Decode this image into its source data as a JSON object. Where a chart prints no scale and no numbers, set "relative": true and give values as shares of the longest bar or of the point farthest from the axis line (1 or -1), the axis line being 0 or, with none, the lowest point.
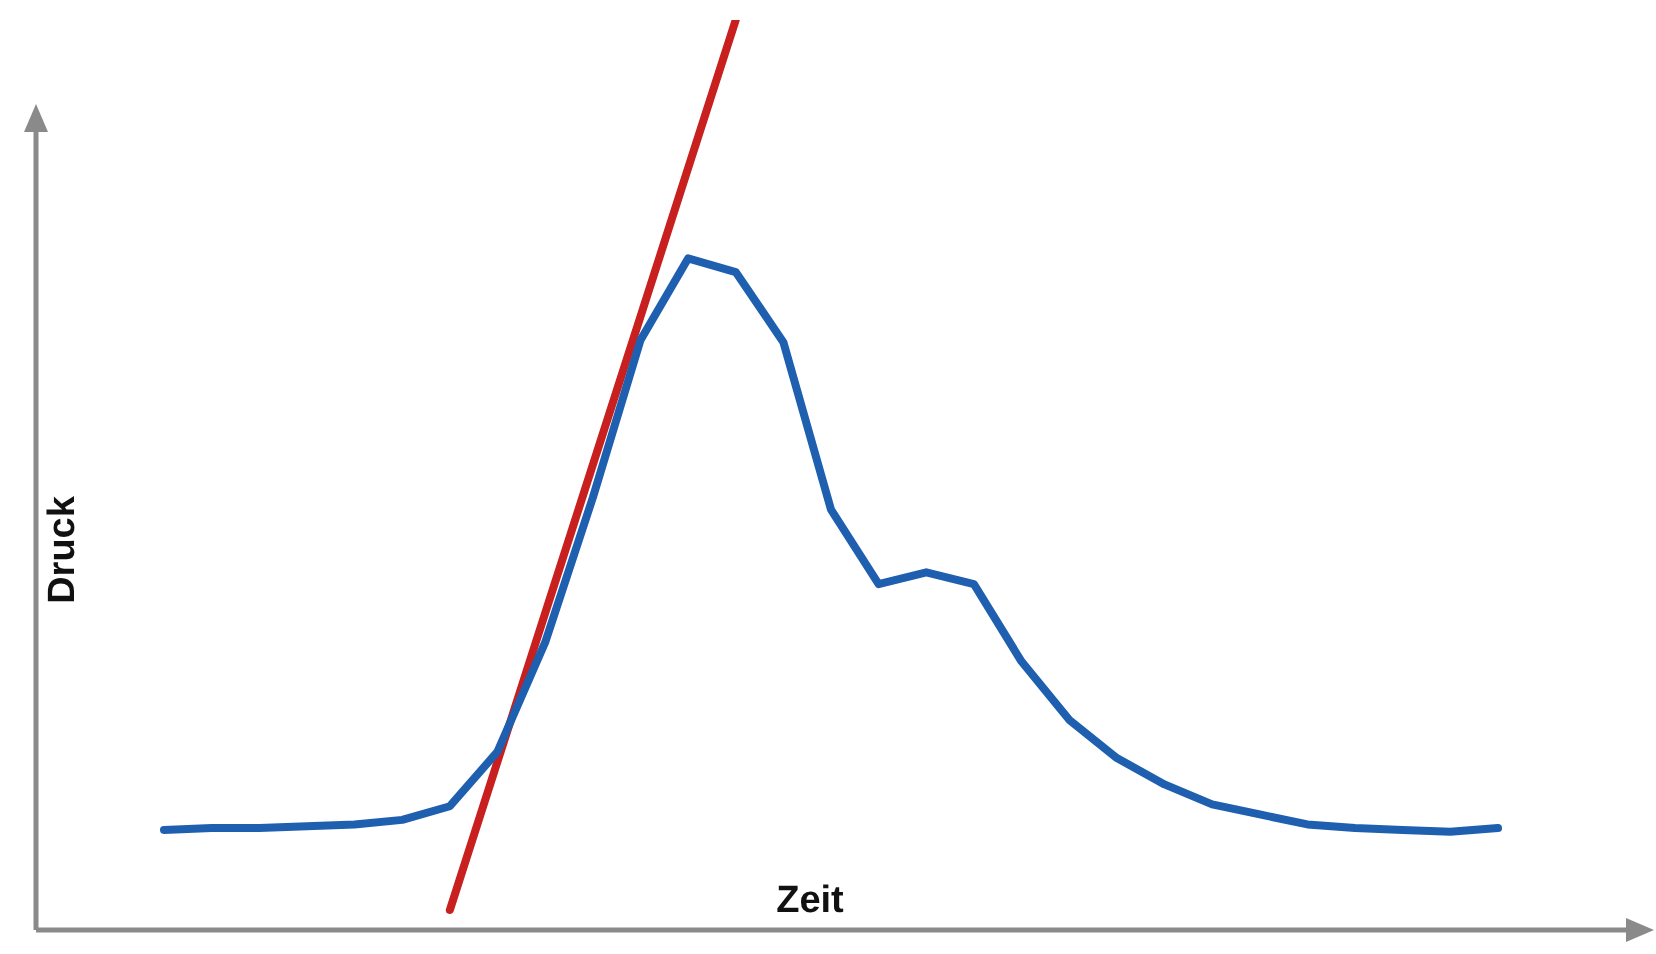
{
  "chart_data": {
    "type": "line",
    "relative": true,
    "xlabel": "Zeit",
    "ylabel": "Druck",
    "tick_labels": false,
    "grid": false,
    "legend": false,
    "marker": "none",
    "line_style": "solid",
    "categories": [
      null,
      null,
      null,
      null,
      null,
      null,
      null,
      null,
      null,
      null,
      null,
      null,
      null,
      null,
      null,
      null,
      null,
      null,
      null,
      null,
      null,
      null,
      null,
      null,
      null,
      null,
      null,
      null,
      null
    ],
    "series": [
      {
        "color": "#1f5fb0",
        "values": [
          0.11,
          0.112,
          0.112,
          0.114,
          0.116,
          0.121,
          0.136,
          0.196,
          0.316,
          0.475,
          0.648,
          0.738,
          0.723,
          0.646,
          0.462,
          0.38,
          0.393,
          0.38,
          0.295,
          0.231,
          0.189,
          0.16,
          0.138,
          0.127,
          0.116,
          0.112,
          0.11,
          0.108,
          0.112
        ]
      },
      {
        "color": "#c8201e",
        "values": [
          null,
          null,
          null,
          null,
          null,
          null,
          0.022,
          0.185,
          0.348,
          0.511,
          0.674,
          0.837,
          1.0,
          null,
          null,
          null,
          null,
          null,
          null,
          null,
          null,
          null,
          null,
          null,
          null,
          null,
          null,
          null,
          null
        ]
      }
    ]
  }
}
